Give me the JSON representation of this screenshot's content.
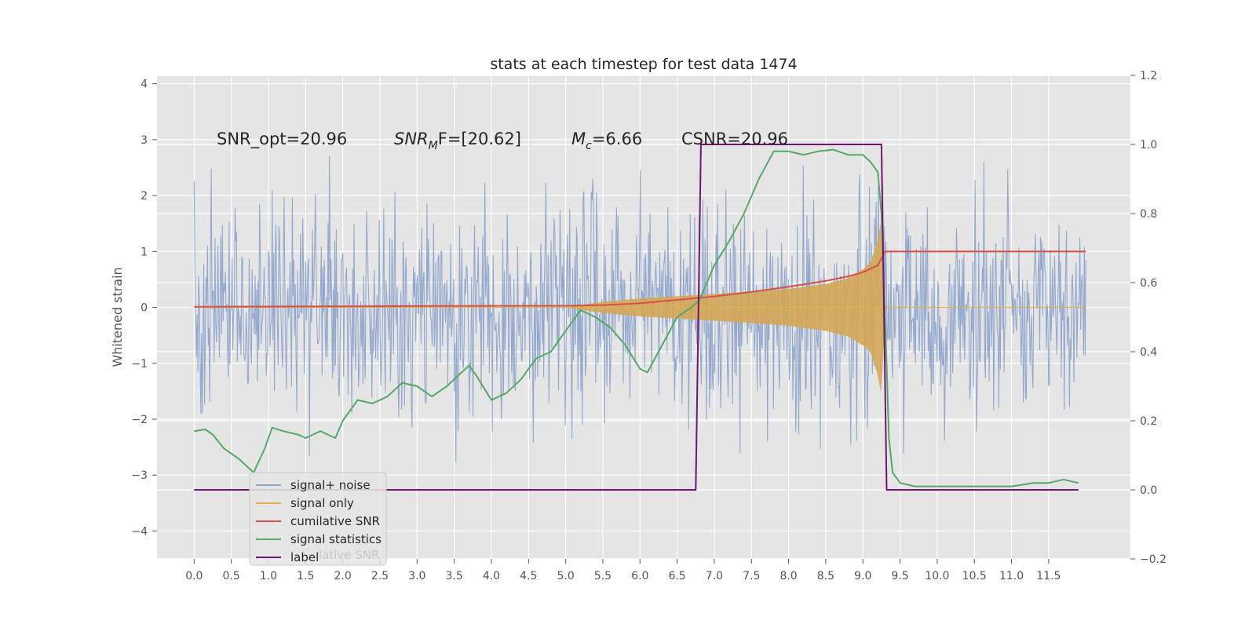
{
  "chart_data": {
    "type": "line",
    "title": "stats at each timestep for test data 1474",
    "ylabel": "Whitened strain",
    "xlabel": "",
    "xlim": [
      -0.5,
      12.6
    ],
    "ylim": [
      -4.5,
      4.15
    ],
    "y2lim": [
      -0.2,
      1.2
    ],
    "grid": true,
    "x_ticks": [
      0.0,
      0.5,
      1.0,
      1.5,
      2.0,
      2.5,
      3.0,
      3.5,
      4.0,
      4.5,
      5.0,
      5.5,
      6.0,
      6.5,
      7.0,
      7.5,
      8.0,
      8.5,
      9.0,
      9.5,
      10.0,
      10.5,
      11.0,
      11.5
    ],
    "x_tick_labels": [
      "0.0",
      "0.5",
      "1.0",
      "1.5",
      "2.0",
      "2.5",
      "3.0",
      "3.5",
      "4.0",
      "4.5",
      "5.0",
      "5.5",
      "6.0",
      "6.5",
      "7.0",
      "7.5",
      "8.0",
      "8.5",
      "9.0",
      "9.5",
      "10.0",
      "10.5",
      "11.0",
      "11.5"
    ],
    "y_ticks": [
      -4,
      -3,
      -2,
      -1,
      0,
      1,
      2,
      3,
      4
    ],
    "y_tick_labels": [
      "−4",
      "−3",
      "−2",
      "−1",
      "0",
      "1",
      "2",
      "3",
      "4"
    ],
    "y2_ticks": [
      -0.2,
      0.0,
      0.2,
      0.4,
      0.6,
      0.8,
      1.0,
      1.2
    ],
    "y2_tick_labels": [
      "−0.2",
      "0.0",
      "0.2",
      "0.4",
      "0.6",
      "0.8",
      "1.0",
      "1.2"
    ],
    "annotations": {
      "snr_opt": "SNR_opt=20.96",
      "snr_mf_base": "SNR",
      "snr_mf_sub": "M",
      "snr_mf_rest": "F=[20.62]",
      "mc_base": "M",
      "mc_sub": "c",
      "mc_rest": "=6.66",
      "csnr": "CSNR=20.96"
    },
    "legend_position": "lower-left",
    "legend_ghost_text": "lative SNR",
    "series": [
      {
        "name": "signal+ noise",
        "color": "#8fa5cc",
        "axis": "left",
        "style": "noise",
        "x_range": [
          0.0,
          12.0
        ],
        "std": 1.0,
        "samples": 1200
      },
      {
        "name": "signal only",
        "color": "#e0b050",
        "fill": "#d4a656",
        "axis": "left",
        "style": "chirp",
        "x": [
          0.0,
          5.0,
          5.5,
          6.0,
          6.5,
          7.0,
          7.5,
          8.0,
          8.5,
          8.8,
          9.0,
          9.1,
          9.2,
          9.25,
          9.3,
          12.0
        ],
        "amp": [
          0.0,
          0.0,
          0.1,
          0.16,
          0.2,
          0.24,
          0.28,
          0.33,
          0.42,
          0.52,
          0.68,
          0.8,
          1.2,
          1.6,
          0.0,
          0.0
        ]
      },
      {
        "name": "cumilative SNR",
        "color": "#d5504a",
        "axis": "right",
        "x": [
          0.0,
          3.0,
          5.0,
          5.5,
          6.0,
          6.5,
          7.0,
          7.5,
          8.0,
          8.5,
          8.8,
          9.0,
          9.2,
          9.3,
          12.0
        ],
        "values": [
          0.53,
          0.532,
          0.533,
          0.535,
          0.54,
          0.55,
          0.56,
          0.573,
          0.588,
          0.605,
          0.618,
          0.63,
          0.65,
          0.69,
          0.69
        ]
      },
      {
        "name": "signal statistics",
        "color": "#55a868",
        "axis": "right",
        "x": [
          0.0,
          0.15,
          0.25,
          0.4,
          0.6,
          0.8,
          0.95,
          1.05,
          1.2,
          1.4,
          1.5,
          1.7,
          1.8,
          1.9,
          2.0,
          2.2,
          2.4,
          2.6,
          2.8,
          3.0,
          3.2,
          3.4,
          3.6,
          3.7,
          3.8,
          4.0,
          4.2,
          4.4,
          4.6,
          4.8,
          5.0,
          5.2,
          5.4,
          5.6,
          5.8,
          6.0,
          6.1,
          6.3,
          6.5,
          6.7,
          6.8,
          7.0,
          7.2,
          7.4,
          7.6,
          7.8,
          8.0,
          8.2,
          8.4,
          8.6,
          8.8,
          9.0,
          9.1,
          9.2,
          9.25,
          9.3,
          9.35,
          9.4,
          9.5,
          9.7,
          10.0,
          10.5,
          11.0,
          11.3,
          11.5,
          11.7,
          11.9
        ],
        "values": [
          0.17,
          0.175,
          0.16,
          0.12,
          0.09,
          0.05,
          0.12,
          0.18,
          0.17,
          0.16,
          0.15,
          0.17,
          0.16,
          0.15,
          0.2,
          0.26,
          0.25,
          0.27,
          0.31,
          0.3,
          0.27,
          0.3,
          0.34,
          0.36,
          0.33,
          0.26,
          0.28,
          0.32,
          0.38,
          0.4,
          0.46,
          0.52,
          0.5,
          0.47,
          0.42,
          0.35,
          0.34,
          0.42,
          0.5,
          0.53,
          0.55,
          0.65,
          0.72,
          0.8,
          0.9,
          0.98,
          0.98,
          0.97,
          0.98,
          0.985,
          0.97,
          0.97,
          0.95,
          0.92,
          0.8,
          0.5,
          0.15,
          0.05,
          0.02,
          0.01,
          0.01,
          0.01,
          0.01,
          0.02,
          0.02,
          0.03,
          0.02
        ]
      },
      {
        "name": "label",
        "color": "#731473",
        "axis": "right",
        "x": [
          0.0,
          6.75,
          6.82,
          9.25,
          9.32,
          11.9
        ],
        "values": [
          0.0,
          0.0,
          1.0,
          1.0,
          0.0,
          0.0
        ]
      }
    ]
  }
}
